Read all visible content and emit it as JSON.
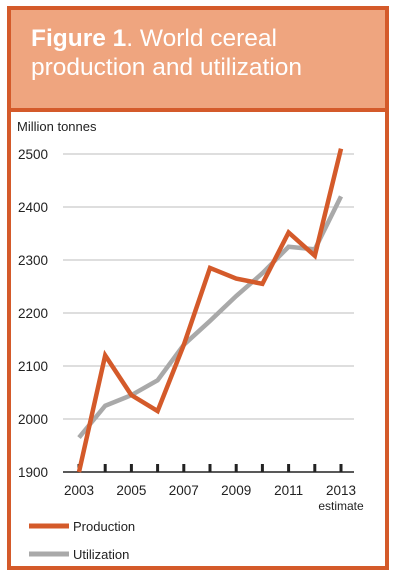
{
  "figure_title": {
    "prefix": "Figure 1",
    "text": ". World cereal production and utilization"
  },
  "colors": {
    "frame": "#d45a2a",
    "header_bg": "#efa57f",
    "production": "#d45a2a",
    "utilization": "#a9a9a9",
    "grid": "#bdbdbd"
  },
  "chart_data": {
    "type": "line",
    "title": "World cereal production and utilization",
    "ylabel": "Million tonnes",
    "xlabel": "",
    "x": [
      2003,
      2004,
      2005,
      2006,
      2007,
      2008,
      2009,
      2010,
      2011,
      2012,
      2013
    ],
    "xticks": [
      {
        "value": 2003,
        "label": "2003",
        "sub": ""
      },
      {
        "value": 2005,
        "label": "2005",
        "sub": ""
      },
      {
        "value": 2007,
        "label": "2007",
        "sub": ""
      },
      {
        "value": 2009,
        "label": "2009",
        "sub": ""
      },
      {
        "value": 2011,
        "label": "2011",
        "sub": ""
      },
      {
        "value": 2013,
        "label": "2013",
        "sub": "estimate"
      }
    ],
    "yticks": [
      1900,
      2000,
      2100,
      2200,
      2300,
      2400,
      2500
    ],
    "xlim": [
      2003,
      2013
    ],
    "ylim": [
      1900,
      2500
    ],
    "grid": true,
    "legend_position": "bottom-left",
    "series": [
      {
        "name": "Production",
        "color": "#d45a2a",
        "values": [
          1900,
          2120,
          2045,
          2015,
          2140,
          2285,
          2265,
          2255,
          2352,
          2308,
          2510
        ]
      },
      {
        "name": "Utilization",
        "color": "#a9a9a9",
        "values": [
          1965,
          2025,
          2045,
          2073,
          2140,
          2185,
          2232,
          2275,
          2325,
          2320,
          2420
        ]
      }
    ]
  }
}
